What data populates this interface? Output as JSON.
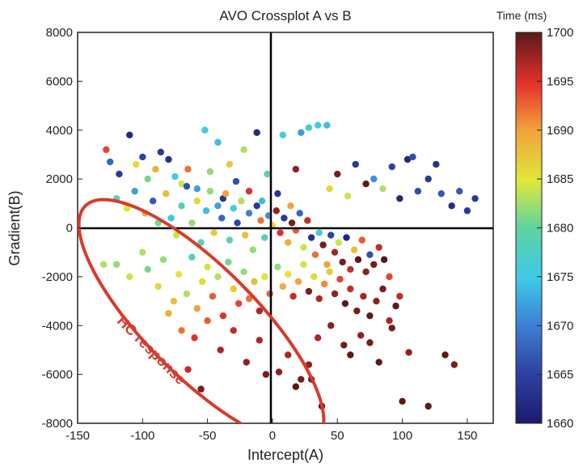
{
  "chart_data": {
    "type": "scatter",
    "title": "AVO Crossplot A vs B",
    "xlabel": "Intercept(A)",
    "ylabel": "Gradient(B)",
    "xlim": [
      -150,
      170
    ],
    "ylim": [
      -8000,
      8000
    ],
    "xticks": [
      "-150",
      "-100",
      "-50",
      "0",
      "50",
      "100",
      "150"
    ],
    "yticks": [
      "8000",
      "6000",
      "4000",
      "2000",
      "0",
      "-2000",
      "-4000",
      "-6000",
      "-8000"
    ],
    "grid": false,
    "colorbar": {
      "title": "Time (ms)",
      "range": [
        1660,
        1700
      ],
      "ticks": [
        "1700",
        "1695",
        "1690",
        "1685",
        "1680",
        "1675",
        "1670",
        "1665",
        "1660"
      ],
      "colormap": "jet"
    },
    "annotation": {
      "text": "HC response",
      "color": "#d93a2b"
    },
    "points": [
      {
        "x": -128,
        "y": 3200,
        "t": 1694
      },
      {
        "x": -125,
        "y": 2700,
        "t": 1668
      },
      {
        "x": -118,
        "y": 2200,
        "t": 1664
      },
      {
        "x": -110,
        "y": 3800,
        "t": 1662
      },
      {
        "x": -105,
        "y": 2600,
        "t": 1686
      },
      {
        "x": -100,
        "y": 2900,
        "t": 1665
      },
      {
        "x": -96,
        "y": 2000,
        "t": 1681
      },
      {
        "x": -90,
        "y": 2400,
        "t": 1689
      },
      {
        "x": -86,
        "y": 3100,
        "t": 1664
      },
      {
        "x": -80,
        "y": 2800,
        "t": 1663
      },
      {
        "x": -75,
        "y": 2100,
        "t": 1676
      },
      {
        "x": -70,
        "y": 1800,
        "t": 1684
      },
      {
        "x": -65,
        "y": 2400,
        "t": 1692
      },
      {
        "x": -58,
        "y": 1600,
        "t": 1672
      },
      {
        "x": -52,
        "y": 4000,
        "t": 1676
      },
      {
        "x": -48,
        "y": 2300,
        "t": 1682
      },
      {
        "x": -42,
        "y": 3500,
        "t": 1674
      },
      {
        "x": -38,
        "y": 1200,
        "t": 1664
      },
      {
        "x": -33,
        "y": 2600,
        "t": 1687
      },
      {
        "x": -28,
        "y": 1900,
        "t": 1666
      },
      {
        "x": -22,
        "y": 3200,
        "t": 1683
      },
      {
        "x": -18,
        "y": 1500,
        "t": 1695
      },
      {
        "x": -12,
        "y": 3900,
        "t": 1662
      },
      {
        "x": -8,
        "y": 1100,
        "t": 1674
      },
      {
        "x": -4,
        "y": 2200,
        "t": 1680
      },
      {
        "x": 4,
        "y": 1400,
        "t": 1664
      },
      {
        "x": 8,
        "y": 3800,
        "t": 1676
      },
      {
        "x": 14,
        "y": 900,
        "t": 1690
      },
      {
        "x": 18,
        "y": 2400,
        "t": 1698
      },
      {
        "x": 22,
        "y": 3900,
        "t": 1672
      },
      {
        "x": 28,
        "y": 4100,
        "t": 1676
      },
      {
        "x": 35,
        "y": 4200,
        "t": 1675
      },
      {
        "x": 42,
        "y": 4200,
        "t": 1674
      },
      {
        "x": 44,
        "y": 1600,
        "t": 1686
      },
      {
        "x": 50,
        "y": 2200,
        "t": 1699
      },
      {
        "x": 58,
        "y": 1300,
        "t": 1684
      },
      {
        "x": 64,
        "y": 2600,
        "t": 1664
      },
      {
        "x": 72,
        "y": 1800,
        "t": 1700
      },
      {
        "x": 78,
        "y": 2000,
        "t": 1671
      },
      {
        "x": 85,
        "y": 1600,
        "t": 1683
      },
      {
        "x": 92,
        "y": 2500,
        "t": 1665
      },
      {
        "x": 98,
        "y": 1200,
        "t": 1662
      },
      {
        "x": 104,
        "y": 2800,
        "t": 1662
      },
      {
        "x": 108,
        "y": 2900,
        "t": 1666
      },
      {
        "x": 112,
        "y": 1500,
        "t": 1666
      },
      {
        "x": 120,
        "y": 2000,
        "t": 1664
      },
      {
        "x": 126,
        "y": 2600,
        "t": 1663
      },
      {
        "x": 130,
        "y": 1400,
        "t": 1667
      },
      {
        "x": 138,
        "y": 900,
        "t": 1663
      },
      {
        "x": 144,
        "y": 1500,
        "t": 1667
      },
      {
        "x": 150,
        "y": 700,
        "t": 1664
      },
      {
        "x": 156,
        "y": 1200,
        "t": 1664
      },
      {
        "x": -120,
        "y": 1200,
        "t": 1678
      },
      {
        "x": -112,
        "y": 800,
        "t": 1685
      },
      {
        "x": -106,
        "y": 1500,
        "t": 1672
      },
      {
        "x": -98,
        "y": 600,
        "t": 1690
      },
      {
        "x": -92,
        "y": 1100,
        "t": 1667
      },
      {
        "x": -88,
        "y": 200,
        "t": 1681
      },
      {
        "x": -82,
        "y": 1400,
        "t": 1688
      },
      {
        "x": -78,
        "y": 400,
        "t": 1675
      },
      {
        "x": -74,
        "y": -300,
        "t": 1684
      },
      {
        "x": -70,
        "y": 900,
        "t": 1678
      },
      {
        "x": -66,
        "y": 1700,
        "t": 1666
      },
      {
        "x": -62,
        "y": 200,
        "t": 1682
      },
      {
        "x": -58,
        "y": 1100,
        "t": 1686
      },
      {
        "x": -55,
        "y": -600,
        "t": 1679
      },
      {
        "x": -51,
        "y": 700,
        "t": 1674
      },
      {
        "x": -48,
        "y": 1500,
        "t": 1682
      },
      {
        "x": -45,
        "y": -200,
        "t": 1687
      },
      {
        "x": -42,
        "y": 900,
        "t": 1672
      },
      {
        "x": -39,
        "y": 400,
        "t": 1668
      },
      {
        "x": -36,
        "y": 1400,
        "t": 1690
      },
      {
        "x": -33,
        "y": -500,
        "t": 1680
      },
      {
        "x": -30,
        "y": 800,
        "t": 1676
      },
      {
        "x": -27,
        "y": 200,
        "t": 1665
      },
      {
        "x": -24,
        "y": 1100,
        "t": 1683
      },
      {
        "x": -21,
        "y": -300,
        "t": 1688
      },
      {
        "x": -18,
        "y": 600,
        "t": 1670
      },
      {
        "x": -15,
        "y": -900,
        "t": 1682
      },
      {
        "x": -12,
        "y": 900,
        "t": 1664
      },
      {
        "x": -9,
        "y": 300,
        "t": 1692
      },
      {
        "x": -6,
        "y": -400,
        "t": 1679
      },
      {
        "x": -3,
        "y": 500,
        "t": 1671
      },
      {
        "x": 0,
        "y": 100,
        "t": 1686
      },
      {
        "x": 3,
        "y": 700,
        "t": 1698
      },
      {
        "x": 6,
        "y": -200,
        "t": 1695
      },
      {
        "x": 9,
        "y": 400,
        "t": 1664
      },
      {
        "x": 12,
        "y": -600,
        "t": 1689
      },
      {
        "x": 15,
        "y": 200,
        "t": 1699
      },
      {
        "x": 18,
        "y": -100,
        "t": 1693
      },
      {
        "x": 21,
        "y": 600,
        "t": 1668
      },
      {
        "x": 24,
        "y": -800,
        "t": 1684
      },
      {
        "x": 27,
        "y": 300,
        "t": 1696
      },
      {
        "x": 30,
        "y": -400,
        "t": 1663
      },
      {
        "x": 33,
        "y": -1100,
        "t": 1692
      },
      {
        "x": 36,
        "y": -200,
        "t": 1676
      },
      {
        "x": 39,
        "y": -700,
        "t": 1699
      },
      {
        "x": 42,
        "y": -1500,
        "t": 1690
      },
      {
        "x": 45,
        "y": -300,
        "t": 1665
      },
      {
        "x": 48,
        "y": -1000,
        "t": 1697
      },
      {
        "x": 51,
        "y": -600,
        "t": 1684
      },
      {
        "x": 54,
        "y": -1400,
        "t": 1699
      },
      {
        "x": 57,
        "y": -400,
        "t": 1662
      },
      {
        "x": 60,
        "y": -1700,
        "t": 1696
      },
      {
        "x": 63,
        "y": -900,
        "t": 1688
      },
      {
        "x": 66,
        "y": -1300,
        "t": 1700
      },
      {
        "x": 69,
        "y": -500,
        "t": 1693
      },
      {
        "x": 72,
        "y": -1800,
        "t": 1698
      },
      {
        "x": 75,
        "y": -1100,
        "t": 1666
      },
      {
        "x": 78,
        "y": -1500,
        "t": 1699
      },
      {
        "x": 82,
        "y": -800,
        "t": 1696
      },
      {
        "x": 86,
        "y": -1300,
        "t": 1700
      },
      {
        "x": 90,
        "y": -2000,
        "t": 1694
      },
      {
        "x": -130,
        "y": -1500,
        "t": 1683
      },
      {
        "x": -120,
        "y": -1500,
        "t": 1682
      },
      {
        "x": -110,
        "y": -2000,
        "t": 1684
      },
      {
        "x": -100,
        "y": -1000,
        "t": 1683
      },
      {
        "x": -96,
        "y": -1700,
        "t": 1681
      },
      {
        "x": -88,
        "y": -2400,
        "t": 1686
      },
      {
        "x": -84,
        "y": -1300,
        "t": 1682
      },
      {
        "x": -76,
        "y": -3000,
        "t": 1688
      },
      {
        "x": -72,
        "y": -1900,
        "t": 1685
      },
      {
        "x": -66,
        "y": -2700,
        "t": 1683
      },
      {
        "x": -62,
        "y": -1200,
        "t": 1679
      },
      {
        "x": -58,
        "y": -3300,
        "t": 1690
      },
      {
        "x": -54,
        "y": -2200,
        "t": 1686
      },
      {
        "x": -50,
        "y": -1600,
        "t": 1684
      },
      {
        "x": -46,
        "y": -2800,
        "t": 1693
      },
      {
        "x": -42,
        "y": -2000,
        "t": 1683
      },
      {
        "x": -38,
        "y": -3600,
        "t": 1695
      },
      {
        "x": -34,
        "y": -1400,
        "t": 1681
      },
      {
        "x": -30,
        "y": -2500,
        "t": 1687
      },
      {
        "x": -26,
        "y": -3100,
        "t": 1694
      },
      {
        "x": -22,
        "y": -1800,
        "t": 1682
      },
      {
        "x": -18,
        "y": -2900,
        "t": 1692
      },
      {
        "x": -14,
        "y": -2200,
        "t": 1688
      },
      {
        "x": -10,
        "y": -3400,
        "t": 1697
      },
      {
        "x": -6,
        "y": -2000,
        "t": 1685
      },
      {
        "x": -2,
        "y": -2700,
        "t": 1693
      },
      {
        "x": 4,
        "y": -1600,
        "t": 1682
      },
      {
        "x": 8,
        "y": -2400,
        "t": 1689
      },
      {
        "x": 12,
        "y": -1900,
        "t": 1685
      },
      {
        "x": 16,
        "y": -2800,
        "t": 1696
      },
      {
        "x": 20,
        "y": -2200,
        "t": 1690
      },
      {
        "x": 24,
        "y": -1500,
        "t": 1684
      },
      {
        "x": 28,
        "y": -2600,
        "t": 1699
      },
      {
        "x": 32,
        "y": -2000,
        "t": 1686
      },
      {
        "x": 36,
        "y": -2900,
        "t": 1697
      },
      {
        "x": 40,
        "y": -2300,
        "t": 1691
      },
      {
        "x": 44,
        "y": -1800,
        "t": 1687
      },
      {
        "x": 48,
        "y": -2700,
        "t": 1698
      },
      {
        "x": 52,
        "y": -2100,
        "t": 1694
      },
      {
        "x": 56,
        "y": -3100,
        "t": 1700
      },
      {
        "x": 60,
        "y": -2500,
        "t": 1696
      },
      {
        "x": 65,
        "y": -3400,
        "t": 1699
      },
      {
        "x": 70,
        "y": -2800,
        "t": 1697
      },
      {
        "x": 75,
        "y": -3600,
        "t": 1700
      },
      {
        "x": 80,
        "y": -3000,
        "t": 1698
      },
      {
        "x": 85,
        "y": -2500,
        "t": 1699
      },
      {
        "x": 90,
        "y": -3800,
        "t": 1697
      },
      {
        "x": 95,
        "y": -3200,
        "t": 1700
      },
      {
        "x": 98,
        "y": -2800,
        "t": 1696
      },
      {
        "x": -80,
        "y": -3500,
        "t": 1689
      },
      {
        "x": -70,
        "y": -4200,
        "t": 1692
      },
      {
        "x": -60,
        "y": -4500,
        "t": 1695
      },
      {
        "x": -50,
        "y": -3800,
        "t": 1693
      },
      {
        "x": -40,
        "y": -5000,
        "t": 1697
      },
      {
        "x": -30,
        "y": -4200,
        "t": 1696
      },
      {
        "x": -20,
        "y": -5500,
        "t": 1698
      },
      {
        "x": -10,
        "y": -4600,
        "t": 1697
      },
      {
        "x": -5,
        "y": -6000,
        "t": 1699
      },
      {
        "x": 5,
        "y": -5900,
        "t": 1698
      },
      {
        "x": 12,
        "y": -5200,
        "t": 1697
      },
      {
        "x": 18,
        "y": -6500,
        "t": 1700
      },
      {
        "x": 22,
        "y": -6200,
        "t": 1699
      },
      {
        "x": 28,
        "y": -5600,
        "t": 1698
      },
      {
        "x": 30,
        "y": -6200,
        "t": 1699
      },
      {
        "x": 35,
        "y": -4500,
        "t": 1697
      },
      {
        "x": 38,
        "y": -7300,
        "t": 1700
      },
      {
        "x": 45,
        "y": -4000,
        "t": 1698
      },
      {
        "x": 55,
        "y": -4800,
        "t": 1699
      },
      {
        "x": 60,
        "y": -5200,
        "t": 1700
      },
      {
        "x": 68,
        "y": -4400,
        "t": 1698
      },
      {
        "x": 75,
        "y": -4700,
        "t": 1699
      },
      {
        "x": 82,
        "y": -5500,
        "t": 1700
      },
      {
        "x": 92,
        "y": -4100,
        "t": 1699
      },
      {
        "x": 100,
        "y": -7100,
        "t": 1700
      },
      {
        "x": 105,
        "y": -5100,
        "t": 1698
      },
      {
        "x": 120,
        "y": -7300,
        "t": 1700
      },
      {
        "x": 133,
        "y": -5200,
        "t": 1700
      },
      {
        "x": 140,
        "y": -5600,
        "t": 1699
      },
      {
        "x": -65,
        "y": -5800,
        "t": 1696
      },
      {
        "x": -55,
        "y": -6600,
        "t": 1699
      }
    ]
  }
}
